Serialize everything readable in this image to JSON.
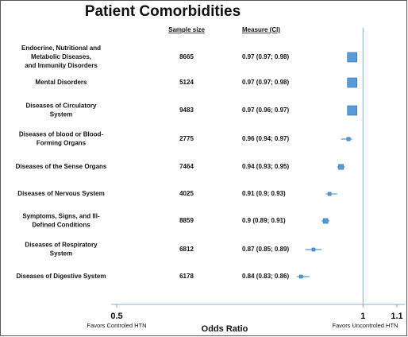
{
  "chart_data": {
    "type": "forest",
    "title": "Patient Comorbidities",
    "sample_header": "Sample size",
    "measure_header": "Measure (CI)",
    "categories": [
      [
        "Endocrine, Nutritional and",
        "Metabolic Diseases,",
        "and Immunity Disorders"
      ],
      [
        "Mental Disorders"
      ],
      [
        "Diseases of Circulatory",
        "System"
      ],
      [
        "Diseases of blood or Blood-",
        "Forming Organs"
      ],
      [
        "Diseases of the Sense Organs"
      ],
      [
        "Diseases of Nervous System"
      ],
      [
        "Symptoms, Signs, and Ill-",
        "Defined Conditions"
      ],
      [
        "Diseases of Respiratory",
        "System"
      ],
      [
        "Diseases of Digestive System"
      ]
    ],
    "sample_sizes": [
      "8665",
      "5124",
      "9483",
      "2775",
      "7464",
      "4025",
      "8859",
      "6812",
      "6178"
    ],
    "values": [
      0.97,
      0.97,
      0.97,
      0.96,
      0.94,
      0.91,
      0.9,
      0.87,
      0.84
    ],
    "ci": [
      [
        0.97,
        0.98
      ],
      [
        0.97,
        0.98
      ],
      [
        0.96,
        0.97
      ],
      [
        0.94,
        0.97
      ],
      [
        0.93,
        0.95
      ],
      [
        0.9,
        0.93
      ],
      [
        0.89,
        0.91
      ],
      [
        0.85,
        0.89
      ],
      [
        0.83,
        0.86
      ]
    ],
    "value_labels": [
      "0.97 (0.97; 0.98)",
      "0.97 (0.97; 0.98)",
      "0.97 (0.96; 0.97)",
      "0.96 (0.94; 0.97)",
      "0.94 (0.93; 0.95)",
      "0.91 (0.9; 0.93)",
      "0.9 (0.89; 0.91)",
      "0.87 (0.85; 0.89)",
      "0.84 (0.83; 0.86)"
    ],
    "xlabel": "Odds Ratio",
    "xlim": [
      0.5,
      1.1
    ],
    "xticks": [
      0.5,
      1,
      1.1
    ],
    "log_x": true,
    "reference": 1,
    "left_note": "Favors Controled HTN",
    "right_note": "Favors Uncontroled HTN",
    "color": "#5b9bd5"
  }
}
